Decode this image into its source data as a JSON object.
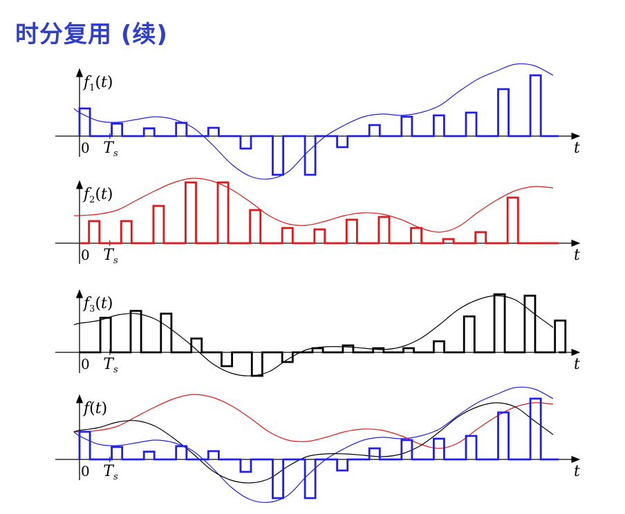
{
  "title": "时分复用 (续)",
  "colors": {
    "f1": "#1f1fe6",
    "f2": "#e61414",
    "f3": "#000000",
    "title": "#2f3fc8"
  },
  "panels": [
    {
      "id": "p1",
      "fn": "f",
      "sub": "1",
      "arg": "(t)",
      "series": [
        "f1"
      ]
    },
    {
      "id": "p2",
      "fn": "f",
      "sub": "2",
      "arg": "(t)",
      "series": [
        "f2"
      ]
    },
    {
      "id": "p3",
      "fn": "f",
      "sub": "3",
      "arg": "(t)",
      "series": [
        "f3"
      ]
    },
    {
      "id": "p4",
      "fn": "f",
      "sub": "",
      "arg": "(t)",
      "series": [
        "f1",
        "f2",
        "f3"
      ]
    }
  ],
  "axis": {
    "zero": "0",
    "ts_main": "T",
    "ts_sub": "s",
    "t": "t"
  },
  "chart_data": {
    "type": "line",
    "x_start": 0.0,
    "sample_period": 1.0,
    "f1": {
      "x": [
        -0.3,
        0,
        1,
        2,
        3,
        4,
        5,
        6,
        7,
        8,
        9,
        10,
        11,
        12,
        13,
        14,
        15,
        16,
        17,
        18,
        19,
        20,
        21,
        22,
        23,
        24,
        25
      ],
      "y": [
        1.0,
        0.85,
        0.55,
        0.5,
        0.6,
        0.7,
        0.6,
        0.3,
        -0.3,
        -1.0,
        -1.45,
        -1.55,
        -1.3,
        -0.6,
        0.0,
        0.4,
        0.7,
        0.8,
        0.75,
        0.85,
        1.1,
        1.6,
        2.05,
        2.35,
        2.6,
        2.55,
        2.2
      ]
    },
    "f1_samples": [
      1.0,
      0.45,
      0.28,
      0.48,
      0.3,
      -0.45,
      -1.4,
      -1.4,
      -0.4,
      0.4,
      0.7,
      0.75,
      0.85,
      1.7,
      2.2
    ],
    "f2": {
      "x": [
        -0.3,
        0,
        1,
        2,
        3,
        4,
        5,
        6,
        7,
        8,
        9,
        10,
        11,
        12,
        13,
        14,
        15,
        16,
        17,
        18,
        19,
        20,
        21,
        22,
        23,
        24,
        25
      ],
      "y": [
        1.0,
        1.0,
        1.05,
        1.2,
        1.55,
        1.9,
        2.2,
        2.35,
        2.25,
        1.95,
        1.5,
        1.0,
        0.7,
        0.65,
        0.8,
        1.0,
        1.1,
        1.05,
        0.85,
        0.55,
        0.4,
        0.6,
        1.1,
        1.55,
        1.9,
        2.05,
        2.0
      ],
      "samples": [
        0.8,
        0.8,
        1.35,
        2.2,
        2.2,
        1.2,
        0.55,
        0.5,
        0.85,
        0.95,
        0.55,
        0.15,
        0.4,
        1.65
      ]
    },
    "f3": {
      "x": [
        -0.3,
        0,
        1,
        2,
        3,
        4,
        5,
        6,
        7,
        8,
        9,
        10,
        11,
        12,
        13,
        14,
        15,
        16,
        17,
        18,
        19,
        20,
        21,
        22,
        23,
        24,
        25
      ],
      "y": [
        1.0,
        1.05,
        1.15,
        1.35,
        1.4,
        1.2,
        0.75,
        0.2,
        -0.4,
        -0.75,
        -0.85,
        -0.7,
        -0.25,
        0.1,
        0.2,
        0.2,
        0.15,
        0.1,
        0.2,
        0.5,
        1.0,
        1.55,
        1.9,
        2.05,
        1.9,
        1.4,
        0.9
      ],
      "samples": [
        1.25,
        1.5,
        1.4,
        0.5,
        -0.5,
        -0.85,
        -0.35,
        0.15,
        0.25,
        0.15,
        0.15,
        0.4,
        1.3,
        2.1,
        2.05,
        1.15
      ]
    }
  }
}
